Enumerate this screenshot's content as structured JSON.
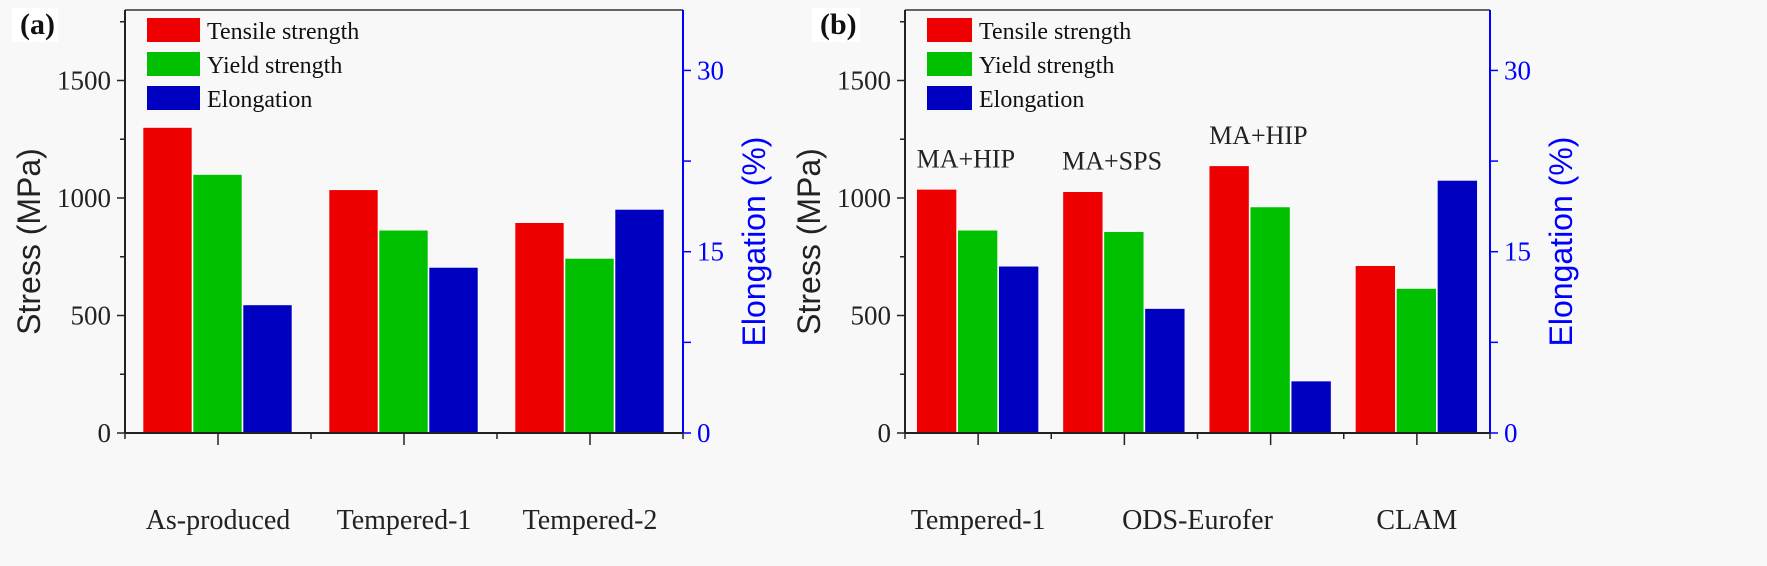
{
  "chart_data": [
    {
      "type": "bar",
      "panel_label": "(a)",
      "categories": [
        "As-produced",
        "Tempered-1",
        "Tempered-2"
      ],
      "series": [
        {
          "name": "Tensile strength",
          "axis": "left",
          "color": "#ee0000",
          "values": [
            1300,
            1035,
            895
          ]
        },
        {
          "name": "Yield strength",
          "axis": "left",
          "color": "#00c000",
          "values": [
            1100,
            863,
            743
          ]
        },
        {
          "name": "Elongation",
          "axis": "right",
          "color": "#0000c0",
          "values": [
            10.6,
            13.7,
            18.5
          ]
        }
      ],
      "ylabel": "Stress (MPa)",
      "ylim": [
        0,
        1800
      ],
      "yticks": [
        "0",
        "500",
        "1000",
        "1500"
      ],
      "y2label": "Elongation (%)",
      "y2lim": [
        0,
        35
      ],
      "y2ticks": [
        "0",
        "15",
        "30"
      ],
      "y2_color": "#0000ff",
      "annotations": [],
      "legend": "top-left",
      "grid": false
    },
    {
      "type": "bar",
      "panel_label": "(b)",
      "categories": [
        "Tempered-1",
        "ODS-Eurofer (MA+SPS)",
        "ODS-Eurofer (MA+HIP)",
        "CLAM"
      ],
      "xticklabels": [
        {
          "text": "Tempered-1",
          "at": "Tempered-1"
        },
        {
          "text": "ODS-Eurofer",
          "at": "between ODS-Eurofer groups"
        },
        {
          "text": "CLAM",
          "at": "CLAM"
        }
      ],
      "series": [
        {
          "name": "Tensile strength",
          "axis": "left",
          "color": "#ee0000",
          "values": [
            1037,
            1027,
            1137,
            712
          ]
        },
        {
          "name": "Yield strength",
          "axis": "left",
          "color": "#00c000",
          "values": [
            863,
            857,
            962,
            615
          ]
        },
        {
          "name": "Elongation",
          "axis": "right",
          "color": "#0000c0",
          "values": [
            13.8,
            10.3,
            4.3,
            20.9
          ]
        }
      ],
      "annotations": [
        "MA+HIP",
        "MA+SPS",
        "MA+HIP",
        ""
      ],
      "ylabel": "Stress (MPa)",
      "ylim": [
        0,
        1800
      ],
      "yticks": [
        "0",
        "500",
        "1000",
        "1500"
      ],
      "y2label": "Elongation (%)",
      "y2lim": [
        0,
        35
      ],
      "y2ticks": [
        "0",
        "15",
        "30"
      ],
      "y2_color": "#0000ff",
      "legend": "top-left",
      "grid": false
    }
  ]
}
